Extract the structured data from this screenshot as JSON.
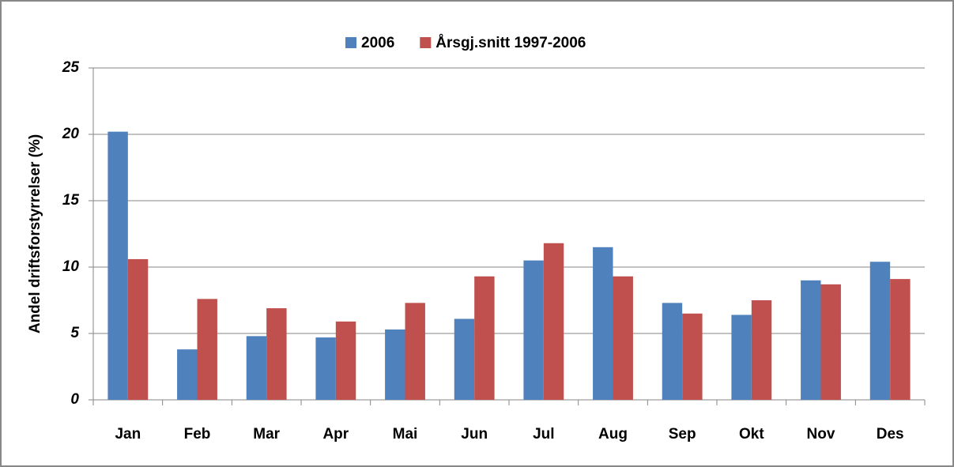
{
  "chart_data": {
    "type": "bar",
    "categories": [
      "Jan",
      "Feb",
      "Mar",
      "Apr",
      "Mai",
      "Jun",
      "Jul",
      "Aug",
      "Sep",
      "Okt",
      "Nov",
      "Des"
    ],
    "series": [
      {
        "name": "2006",
        "color": "#4f81bd",
        "values": [
          20.2,
          3.8,
          4.8,
          4.7,
          5.3,
          6.1,
          10.5,
          11.5,
          7.3,
          6.4,
          9.0,
          10.4
        ]
      },
      {
        "name": "Årsgj.snitt 1997-2006",
        "color": "#c0504d",
        "values": [
          10.6,
          7.6,
          6.9,
          5.9,
          7.3,
          9.3,
          11.8,
          9.3,
          6.5,
          7.5,
          8.7,
          9.1
        ]
      }
    ],
    "y_label": "Andel driftsforstyrrelser (%)",
    "ylim": [
      0,
      25
    ],
    "yticks": [
      0,
      5,
      10,
      15,
      20,
      25
    ],
    "grid": true,
    "legend": "top"
  }
}
